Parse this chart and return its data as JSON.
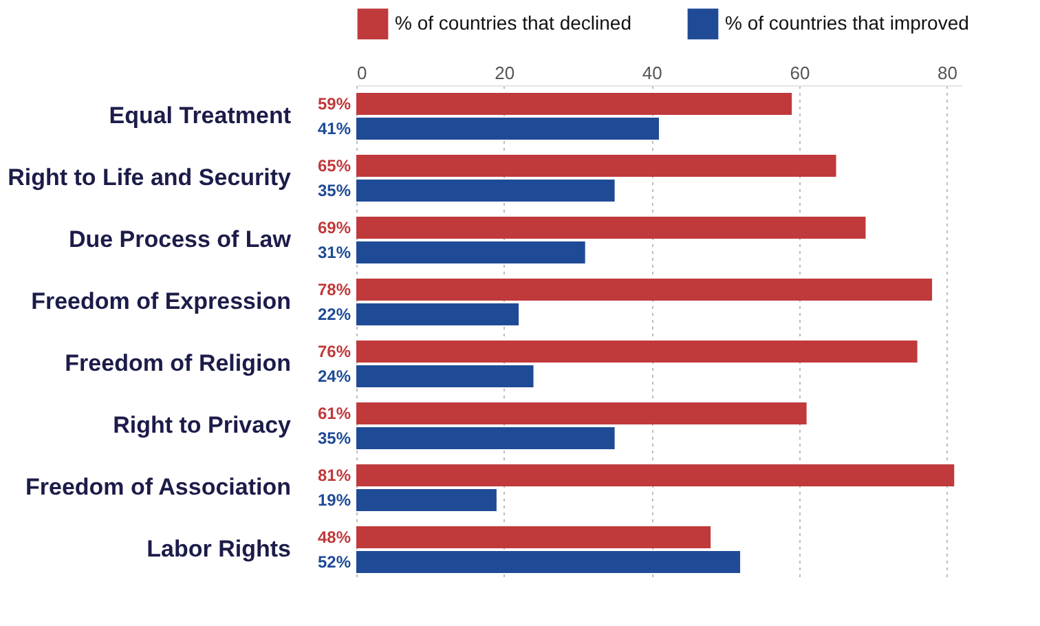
{
  "chart_data": {
    "type": "bar",
    "orientation": "horizontal",
    "categories": [
      "Equal Treatment",
      "Right to Life and Security",
      "Due Process of Law",
      "Freedom of Expression",
      "Freedom of Religion",
      "Right to Privacy",
      "Freedom of Association",
      "Labor Rights"
    ],
    "series": [
      {
        "name": "% of countries that declined",
        "color": "#c0393b",
        "values": [
          59,
          65,
          69,
          78,
          76,
          61,
          81,
          48
        ],
        "value_labels": [
          "59%",
          "65%",
          "69%",
          "78%",
          "76%",
          "61%",
          "81%",
          "48%"
        ]
      },
      {
        "name": "% of countries that improved",
        "color": "#1f4b96",
        "values": [
          41,
          35,
          31,
          22,
          24,
          35,
          19,
          52
        ],
        "value_labels": [
          "41%",
          "35%",
          "31%",
          "22%",
          "24%",
          "35%",
          "19%",
          "52%"
        ]
      }
    ],
    "xlim": [
      0,
      82
    ],
    "xticks": [
      0,
      20,
      40,
      60,
      80
    ],
    "grid": "x",
    "legend": "top"
  }
}
